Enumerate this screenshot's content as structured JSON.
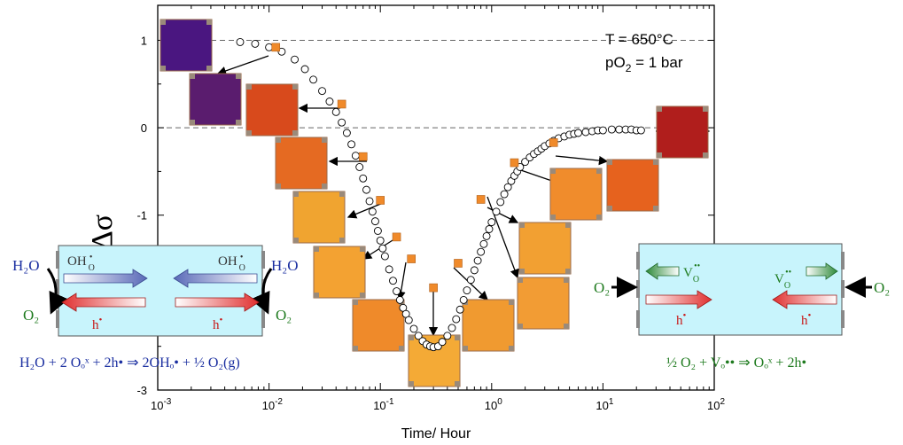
{
  "chart_data": {
    "type": "scatter",
    "xscale": "log",
    "xlim": [
      0.001,
      100
    ],
    "ylim": [
      -3,
      1.4
    ],
    "xlabel": "Time/ Hour",
    "ylabel": "Δσ",
    "x_tick_labels": [
      {
        "base": "10",
        "exp": "-3"
      },
      {
        "base": "10",
        "exp": "-2"
      },
      {
        "base": "10",
        "exp": "-1"
      },
      {
        "base": "10",
        "exp": "0"
      },
      {
        "base": "10",
        "exp": "1"
      },
      {
        "base": "10",
        "exp": "2"
      }
    ],
    "y_ticks": [
      1,
      0,
      -1,
      -2,
      -3
    ],
    "y_tick_labels": [
      "1",
      "0",
      "-1",
      "-2",
      "-3"
    ],
    "reference_lines": [
      1,
      0
    ],
    "annotation": {
      "line1": "T = 650°C",
      "line2_main": "pO",
      "line2_sub": "2",
      "line2_rest": " = 1 bar"
    },
    "series": [
      {
        "marker": "open-circle",
        "color": "#000000",
        "x": [
          0.0055,
          0.0075,
          0.01,
          0.013,
          0.017,
          0.021,
          0.025,
          0.03,
          0.035,
          0.04,
          0.045,
          0.05,
          0.055,
          0.06,
          0.065,
          0.07,
          0.075,
          0.08,
          0.085,
          0.09,
          0.095,
          0.1,
          0.105,
          0.11,
          0.12,
          0.13,
          0.14,
          0.15,
          0.16,
          0.17,
          0.18,
          0.2,
          0.22,
          0.24,
          0.26,
          0.28,
          0.3,
          0.33,
          0.36,
          0.4,
          0.44,
          0.48,
          0.52,
          0.56,
          0.6,
          0.65,
          0.7,
          0.75,
          0.8,
          0.85,
          0.9,
          0.95,
          1.0,
          1.1,
          1.2,
          1.3,
          1.4,
          1.5,
          1.6,
          1.7,
          1.8,
          2.0,
          2.2,
          2.4,
          2.6,
          2.8,
          3.0,
          3.3,
          3.6,
          4.0,
          4.5,
          5.0,
          5.5,
          6.0,
          7.0,
          8.0,
          9.0,
          10.0,
          12.0,
          14.0,
          16.0,
          18.0,
          20.0,
          22.0
        ],
        "y": [
          0.98,
          0.96,
          0.92,
          0.87,
          0.78,
          0.67,
          0.55,
          0.42,
          0.3,
          0.18,
          0.06,
          -0.06,
          -0.19,
          -0.32,
          -0.45,
          -0.58,
          -0.71,
          -0.84,
          -0.96,
          -1.07,
          -1.18,
          -1.29,
          -1.38,
          -1.47,
          -1.62,
          -1.75,
          -1.87,
          -1.97,
          -2.06,
          -2.13,
          -2.2,
          -2.3,
          -2.38,
          -2.44,
          -2.48,
          -2.5,
          -2.51,
          -2.5,
          -2.45,
          -2.38,
          -2.29,
          -2.19,
          -2.08,
          -1.97,
          -1.86,
          -1.74,
          -1.63,
          -1.52,
          -1.42,
          -1.33,
          -1.24,
          -1.16,
          -1.08,
          -0.96,
          -0.85,
          -0.76,
          -0.68,
          -0.61,
          -0.55,
          -0.5,
          -0.45,
          -0.39,
          -0.34,
          -0.3,
          -0.27,
          -0.24,
          -0.21,
          -0.18,
          -0.15,
          -0.12,
          -0.1,
          -0.08,
          -0.07,
          -0.06,
          -0.05,
          -0.04,
          -0.03,
          -0.03,
          -0.02,
          -0.02,
          -0.02,
          -0.02,
          -0.03,
          -0.03
        ]
      },
      {
        "marker": "filled-square",
        "color": "#f08a2a",
        "x": [
          0.0115,
          0.045,
          0.07,
          0.1,
          0.14,
          0.19,
          0.3,
          0.5,
          0.8,
          1.6,
          3.6
        ],
        "y": [
          0.92,
          0.27,
          -0.33,
          -0.83,
          -1.25,
          -1.5,
          -1.83,
          -1.55,
          -0.82,
          -0.4,
          -0.17
        ]
      }
    ],
    "images": [
      {
        "name": "sample-image-1",
        "color": "#4a1680"
      },
      {
        "name": "sample-image-2",
        "color": "#5a1c6e"
      },
      {
        "name": "sample-image-3",
        "color": "#d84a1c"
      },
      {
        "name": "sample-image-4",
        "color": "#e56a22"
      },
      {
        "name": "sample-image-5",
        "color": "#f0a430"
      },
      {
        "name": "sample-image-6",
        "color": "#f3a232"
      },
      {
        "name": "sample-image-7",
        "color": "#ef8a2a"
      },
      {
        "name": "sample-image-8",
        "color": "#f4aa36"
      },
      {
        "name": "sample-image-9",
        "color": "#f09a30"
      },
      {
        "name": "sample-image-10",
        "color": "#f29c34"
      },
      {
        "name": "sample-image-11",
        "color": "#f2a032"
      },
      {
        "name": "sample-image-12",
        "color": "#f08c2c"
      },
      {
        "name": "sample-image-13",
        "color": "#e6621e"
      },
      {
        "name": "sample-image-14",
        "color": "#b01e1c"
      }
    ]
  },
  "left_inset": {
    "left_species": "H₂O",
    "right_species": "H₂O",
    "left_product": "O₂",
    "right_product": "O₂",
    "oh_label": "OH",
    "oh_sub": "O",
    "oh_sup": "•",
    "hole_label": "h",
    "hole_sup": "•",
    "equation": "H₂O + 2 Oₒˣ + 2h• ⇒ 2OHₒ• + ½ O₂(g)"
  },
  "right_inset": {
    "left_species": "O₂",
    "right_species": "O₂",
    "vac_label": "V",
    "vac_sub": "O",
    "vac_sup": "••",
    "hole_label": "h",
    "hole_sup": "•",
    "equation": "½ O₂ + Vₒ•• ⇒ Oₒˣ + 2h•"
  },
  "colors": {
    "inset_fill": "#c8f4fc",
    "oh_arrow": "#5a6ab8",
    "hole_arrow": "#e03030",
    "vac_arrow": "#2e8a3a",
    "blue_text": "#1a2ea0",
    "green_text": "#1e7a1e",
    "red_text": "#c81818"
  }
}
